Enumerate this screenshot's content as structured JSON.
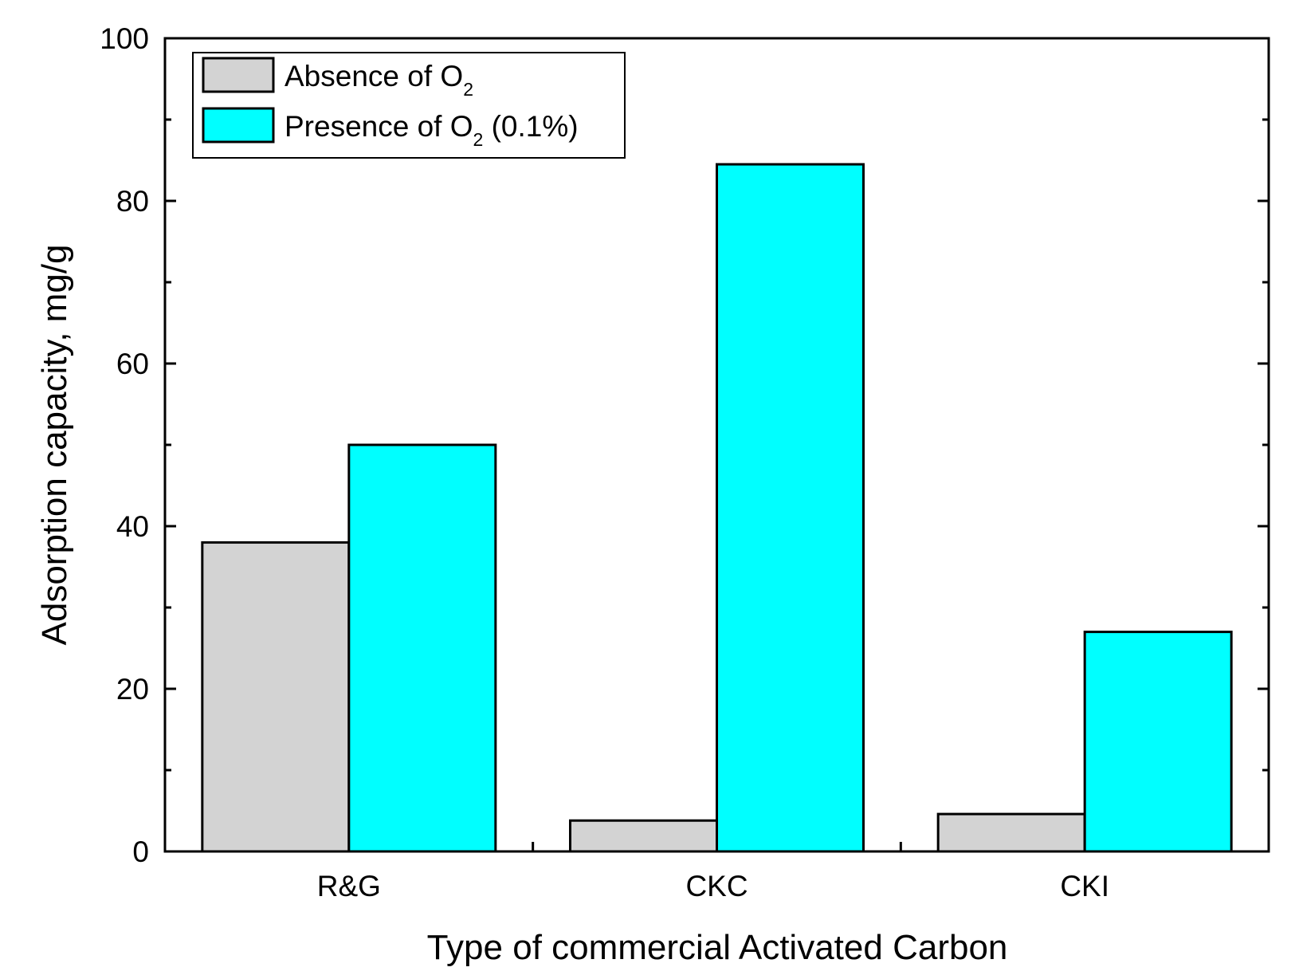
{
  "chart_data": {
    "type": "bar",
    "title": "",
    "xlabel": "Type of commercial Activated Carbon",
    "ylabel": "Adsorption capacity, mg/g",
    "categories": [
      "R&G",
      "CKC",
      "CKI"
    ],
    "ylim": [
      0,
      100
    ],
    "yticks": [
      0,
      20,
      40,
      60,
      80,
      100
    ],
    "y_minor_ticks": [
      10,
      30,
      50,
      70,
      90
    ],
    "grid": false,
    "legend_position": "top-left",
    "series": [
      {
        "name": "Absence of O",
        "name_subscript": "2",
        "name_suffix": "",
        "color": "#d3d3d3",
        "values": [
          38,
          3.8,
          4.6
        ]
      },
      {
        "name": "Presence of O",
        "name_subscript": "2",
        "name_suffix": " (0.1%)",
        "color": "#00ffff",
        "values": [
          50,
          84.5,
          27
        ]
      }
    ]
  }
}
